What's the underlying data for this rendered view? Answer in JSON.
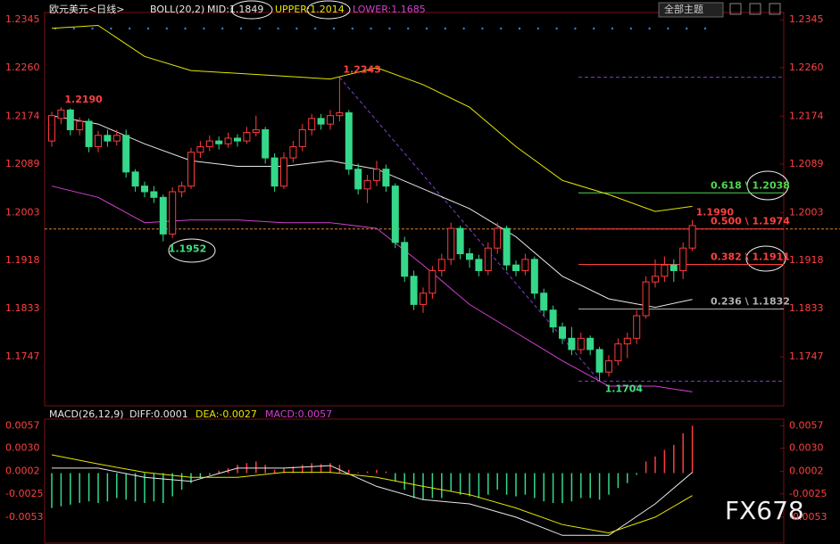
{
  "toolbar": {
    "button": "全部主题"
  },
  "watermark": "FX678",
  "chart_data": [
    {
      "type": "candlestick",
      "title": "欧元美元<日线>",
      "indicator": "BOLL(20,2)",
      "ylim": [
        1.1665,
        1.2358
      ],
      "yticks": [
        1.2345,
        {
          "value": 1.226,
          "label": "1.2260"
        },
        1.2174,
        1.2089,
        1.2003,
        1.1918,
        1.1833,
        1.1747
      ],
      "up_color": "#ff3b3b",
      "down_color": "#35d88a",
      "candles": [
        [
          1.213,
          1.2182,
          1.212,
          1.2175
        ],
        [
          1.217,
          1.219,
          1.216,
          1.2185
        ],
        [
          1.2185,
          1.2188,
          1.214,
          1.215
        ],
        [
          1.215,
          1.2172,
          1.214,
          1.2165
        ],
        [
          1.2165,
          1.217,
          1.211,
          1.212
        ],
        [
          1.212,
          1.2148,
          1.211,
          1.214
        ],
        [
          1.214,
          1.215,
          1.212,
          1.213
        ],
        [
          1.213,
          1.215,
          1.2122,
          1.214
        ],
        [
          1.214,
          1.215,
          1.2065,
          1.2075
        ],
        [
          1.2075,
          1.208,
          1.204,
          1.205
        ],
        [
          1.205,
          1.2058,
          1.203,
          1.204
        ],
        [
          1.204,
          1.205,
          1.202,
          1.203
        ],
        [
          1.203,
          1.2035,
          1.1952,
          1.1965
        ],
        [
          1.1965,
          1.2048,
          1.1958,
          1.204
        ],
        [
          1.204,
          1.2058,
          1.203,
          1.205
        ],
        [
          1.205,
          1.2118,
          1.2045,
          1.211
        ],
        [
          1.211,
          1.213,
          1.21,
          1.212
        ],
        [
          1.212,
          1.214,
          1.2112,
          1.213
        ],
        [
          1.213,
          1.2138,
          1.2115,
          1.2125
        ],
        [
          1.2125,
          1.2145,
          1.2118,
          1.2135
        ],
        [
          1.2135,
          1.2142,
          1.212,
          1.213
        ],
        [
          1.213,
          1.2155,
          1.2125,
          1.2145
        ],
        [
          1.2145,
          1.2175,
          1.2138,
          1.215
        ],
        [
          1.215,
          1.2155,
          1.209,
          1.21
        ],
        [
          1.21,
          1.2108,
          1.204,
          1.205
        ],
        [
          1.205,
          1.211,
          1.2045,
          1.21
        ],
        [
          1.21,
          1.213,
          1.2092,
          1.212
        ],
        [
          1.212,
          1.216,
          1.2112,
          1.215
        ],
        [
          1.215,
          1.2178,
          1.214,
          1.217
        ],
        [
          1.217,
          1.2178,
          1.215,
          1.216
        ],
        [
          1.216,
          1.2185,
          1.215,
          1.2175
        ],
        [
          1.2175,
          1.2243,
          1.2165,
          1.218
        ],
        [
          1.218,
          1.2185,
          1.207,
          1.208
        ],
        [
          1.208,
          1.209,
          1.2035,
          1.2045
        ],
        [
          1.2045,
          1.207,
          1.202,
          1.206
        ],
        [
          1.206,
          1.2095,
          1.205,
          1.208
        ],
        [
          1.208,
          1.2088,
          1.204,
          1.205
        ],
        [
          1.205,
          1.2055,
          1.194,
          1.195
        ],
        [
          1.195,
          1.196,
          1.188,
          1.189
        ],
        [
          1.189,
          1.19,
          1.183,
          1.184
        ],
        [
          1.184,
          1.187,
          1.1825,
          1.186
        ],
        [
          1.186,
          1.1908,
          1.185,
          1.19
        ],
        [
          1.19,
          1.193,
          1.189,
          1.192
        ],
        [
          1.192,
          1.1985,
          1.191,
          1.1975
        ],
        [
          1.1975,
          1.198,
          1.192,
          1.193
        ],
        [
          1.193,
          1.194,
          1.1905,
          1.192
        ],
        [
          1.192,
          1.1928,
          1.189,
          1.19
        ],
        [
          1.19,
          1.195,
          1.1892,
          1.194
        ],
        [
          1.194,
          1.1985,
          1.193,
          1.1975
        ],
        [
          1.1975,
          1.198,
          1.19,
          1.191
        ],
        [
          1.191,
          1.1918,
          1.189,
          1.19
        ],
        [
          1.19,
          1.193,
          1.1892,
          1.192
        ],
        [
          1.192,
          1.1925,
          1.185,
          1.186
        ],
        [
          1.186,
          1.1868,
          1.182,
          1.183
        ],
        [
          1.183,
          1.1838,
          1.179,
          1.18
        ],
        [
          1.18,
          1.1808,
          1.177,
          1.178
        ],
        [
          1.178,
          1.18,
          1.175,
          1.176
        ],
        [
          1.176,
          1.179,
          1.1752,
          1.178
        ],
        [
          1.178,
          1.1785,
          1.175,
          1.176
        ],
        [
          1.176,
          1.1765,
          1.1704,
          1.172
        ],
        [
          1.172,
          1.175,
          1.1712,
          1.174
        ],
        [
          1.174,
          1.178,
          1.1732,
          1.177
        ],
        [
          1.177,
          1.179,
          1.1745,
          1.178
        ],
        [
          1.178,
          1.183,
          1.177,
          1.182
        ],
        [
          1.182,
          1.189,
          1.1815,
          1.188
        ],
        [
          1.188,
          1.192,
          1.187,
          1.189
        ],
        [
          1.189,
          1.1925,
          1.188,
          1.191
        ],
        [
          1.191,
          1.192,
          1.188,
          1.19
        ],
        [
          1.19,
          1.195,
          1.1885,
          1.194
        ],
        [
          1.194,
          1.199,
          1.1935,
          1.198
        ]
      ],
      "series": [
        {
          "name": "MID:1.1849",
          "color": "#e8e8e8",
          "x": [
            0,
            5,
            10,
            15,
            20,
            25,
            30,
            35,
            40,
            45,
            50,
            55,
            60,
            65,
            69
          ],
          "values": [
            1.2175,
            1.216,
            1.2125,
            1.2095,
            1.2085,
            1.2085,
            1.2095,
            1.208,
            1.2045,
            1.201,
            1.196,
            1.189,
            1.185,
            1.1835,
            1.1849
          ]
        },
        {
          "name": "UPPER:1.2014",
          "color": "#e6e600",
          "x": [
            0,
            5,
            10,
            15,
            20,
            25,
            30,
            35,
            40,
            45,
            50,
            55,
            60,
            65,
            69
          ],
          "values": [
            1.233,
            1.2335,
            1.228,
            1.2255,
            1.225,
            1.2245,
            1.224,
            1.226,
            1.223,
            1.219,
            1.212,
            1.206,
            1.2035,
            1.2005,
            1.2014
          ]
        },
        {
          "name": "LOWER:1.1685",
          "color": "#d040d0",
          "x": [
            0,
            5,
            10,
            15,
            20,
            25,
            30,
            35,
            40,
            45,
            50,
            55,
            60,
            65,
            69
          ],
          "values": [
            1.205,
            1.203,
            1.1985,
            1.199,
            1.199,
            1.1985,
            1.1985,
            1.1975,
            1.191,
            1.184,
            1.179,
            1.174,
            1.1695,
            1.1695,
            1.1685
          ]
        }
      ],
      "high_labels": [
        {
          "value": 1.219,
          "label": "1.2190"
        },
        {
          "value": 1.2243,
          "label": "1.2243"
        },
        {
          "value": 1.199,
          "label": "1.1990"
        }
      ],
      "low_labels": [
        {
          "value": 1.1952,
          "label": "1.1952"
        },
        {
          "value": 1.1704,
          "label": "1.1704"
        }
      ],
      "last_price": 1.1974,
      "fib_bounds": [
        1.2243,
        1.1704
      ],
      "fib_levels": [
        {
          "value": 1.2038,
          "label": "0.618 \\ 1.2038",
          "color": "#4fd84f"
        },
        {
          "value": 1.1974,
          "label": "0.500 \\ 1.1974",
          "color": "#ff4040"
        },
        {
          "value": 1.1911,
          "label": "0.382 \\ 1.1911",
          "color": "#ff4040"
        },
        {
          "value": 1.1832,
          "label": "0.236 \\ 1.1832",
          "color": "#b0b0b0"
        }
      ]
    },
    {
      "type": "macd",
      "title": "MACD(26,12,9)",
      "ylim": [
        -0.008,
        0.0065
      ],
      "yticks": [
        0.0057,
        {
          "value": 0.003,
          "label": "0.0030"
        },
        0.0002,
        -0.0025,
        -0.0053
      ],
      "series": [
        {
          "name": "DIFF:0.0001",
          "color": "#e8e8e8",
          "x": [
            0,
            5,
            10,
            15,
            20,
            25,
            30,
            35,
            40,
            45,
            50,
            55,
            60,
            65,
            69
          ],
          "values": [
            0.0006,
            0.0006,
            -0.0005,
            -0.001,
            0.0006,
            0.0006,
            0.0009,
            -0.0016,
            -0.0032,
            -0.0037,
            -0.0053,
            -0.0075,
            -0.0075,
            -0.0037,
            0.0001
          ]
        },
        {
          "name": "DEA:-0.0027",
          "color": "#e6e600",
          "x": [
            0,
            5,
            10,
            15,
            20,
            25,
            30,
            35,
            40,
            45,
            50,
            55,
            60,
            65,
            69
          ],
          "values": [
            0.0022,
            0.0011,
            0.0001,
            -0.0005,
            -0.0005,
            0.0001,
            0.0001,
            -0.0005,
            -0.0016,
            -0.0026,
            -0.0042,
            -0.0062,
            -0.0072,
            -0.0053,
            -0.0027
          ]
        }
      ],
      "histogram": {
        "name": "MACD:0.0057",
        "color": "#d040d0",
        "up_color": "#ff3b3b",
        "down_color": "#35d88a",
        "values": [
          -0.0042,
          -0.004,
          -0.0038,
          -0.0036,
          -0.0034,
          -0.0036,
          -0.0034,
          -0.003,
          -0.0032,
          -0.0034,
          -0.0036,
          -0.0034,
          -0.0036,
          -0.0028,
          -0.002,
          -0.0012,
          -0.0006,
          -0.0002,
          0.0003,
          0.0006,
          0.001,
          0.0012,
          0.0014,
          0.001,
          0.0004,
          0.0006,
          0.0008,
          0.001,
          0.0012,
          0.0011,
          0.0012,
          0.001,
          0.0004,
          0.0001,
          0.0002,
          0.0004,
          0.0002,
          -0.001,
          -0.002,
          -0.003,
          -0.0032,
          -0.003,
          -0.003,
          -0.0022,
          -0.0026,
          -0.0028,
          -0.003,
          -0.0026,
          -0.002,
          -0.0026,
          -0.0028,
          -0.0026,
          -0.003,
          -0.0034,
          -0.0036,
          -0.0036,
          -0.0034,
          -0.003,
          -0.003,
          -0.0032,
          -0.0026,
          -0.0018,
          -0.0012,
          -0.0002,
          0.0014,
          0.002,
          0.0028,
          0.0034,
          0.0048,
          0.0057
        ]
      }
    }
  ]
}
